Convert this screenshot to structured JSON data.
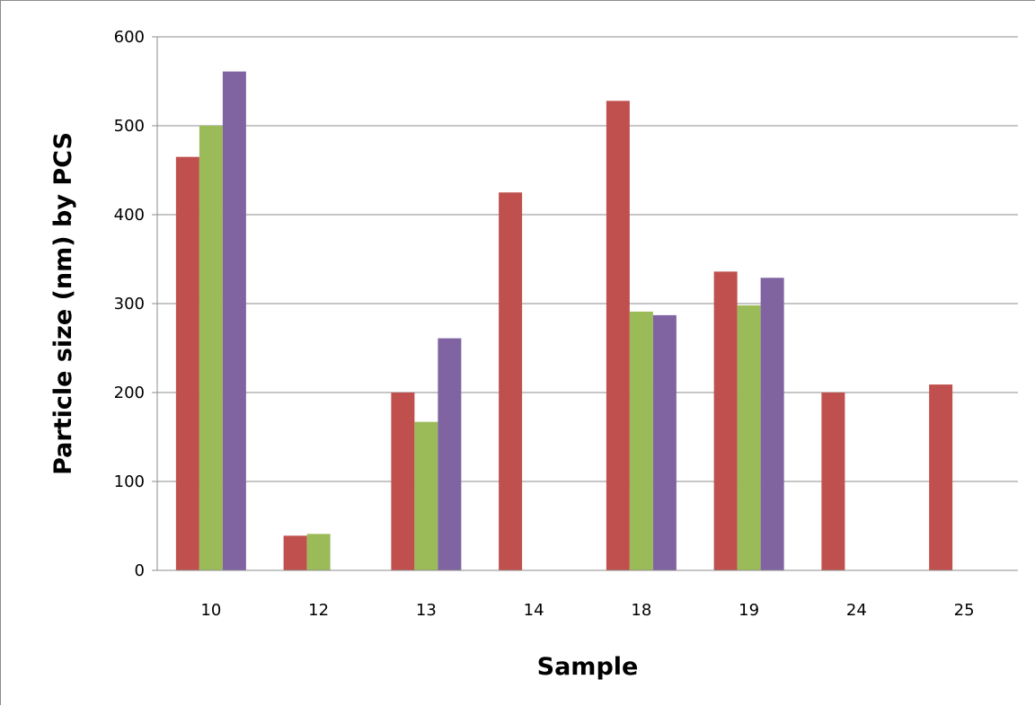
{
  "chart_data": {
    "type": "bar",
    "title": "",
    "xlabel": "Sample",
    "ylabel": "Particle size (nm) by PCS",
    "ylim": [
      0,
      600
    ],
    "yticks": [
      "0",
      "100",
      "200",
      "300",
      "400",
      "500",
      "600"
    ],
    "categories": [
      "10",
      "12",
      "13",
      "14",
      "18",
      "19",
      "24",
      "25"
    ],
    "grid": true,
    "legend": "none",
    "series": [
      {
        "color": "#C0504D",
        "values": [
          465,
          39,
          200,
          425,
          528,
          336,
          200,
          209
        ]
      },
      {
        "color": "#9BBB59",
        "values": [
          500,
          41,
          167,
          null,
          291,
          298,
          null,
          null
        ]
      },
      {
        "color": "#8064A2",
        "values": [
          561,
          null,
          261,
          null,
          287,
          329,
          null,
          null
        ]
      }
    ]
  }
}
